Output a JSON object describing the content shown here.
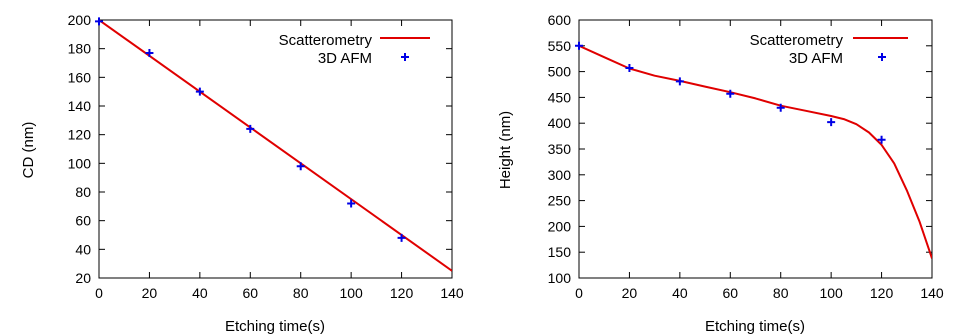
{
  "colors": {
    "fit": "#e00000",
    "afm": "#0000e6",
    "frame": "#000000"
  },
  "chart_data": [
    {
      "type": "scatter",
      "title": "",
      "xlabel": "Etching time(s)",
      "ylabel": "CD (nm)",
      "xlim": [
        0,
        140
      ],
      "ylim": [
        20,
        200
      ],
      "xticks": [
        0,
        20,
        40,
        60,
        80,
        100,
        120,
        140
      ],
      "yticks": [
        20,
        40,
        60,
        80,
        100,
        120,
        140,
        160,
        180,
        200
      ],
      "grid": false,
      "legend_position": "top-right",
      "series": [
        {
          "name": "Scatterometry",
          "style": "line",
          "color": "#e00000",
          "x": [
            0,
            140
          ],
          "y": [
            200,
            25
          ]
        },
        {
          "name": "3D AFM",
          "style": "points",
          "marker": "plus",
          "color": "#0000e6",
          "x": [
            0,
            20,
            40,
            60,
            80,
            100,
            120
          ],
          "y": [
            199,
            177,
            150,
            124,
            98,
            72,
            48
          ]
        }
      ]
    },
    {
      "type": "scatter",
      "title": "",
      "xlabel": "Etching time(s)",
      "ylabel": "Height (nm)",
      "xlim": [
        0,
        140
      ],
      "ylim": [
        100,
        600
      ],
      "xticks": [
        0,
        20,
        40,
        60,
        80,
        100,
        120,
        140
      ],
      "yticks": [
        100,
        150,
        200,
        250,
        300,
        350,
        400,
        450,
        500,
        550,
        600
      ],
      "grid": false,
      "legend_position": "top-right",
      "series": [
        {
          "name": "Scatterometry",
          "style": "line",
          "color": "#e00000",
          "x": [
            0,
            10,
            20,
            30,
            40,
            50,
            60,
            70,
            80,
            90,
            100,
            105,
            110,
            115,
            120,
            125,
            130,
            135,
            140
          ],
          "y": [
            550,
            528,
            506,
            492,
            482,
            471,
            460,
            448,
            434,
            424,
            414,
            408,
            398,
            382,
            358,
            322,
            270,
            210,
            138
          ]
        },
        {
          "name": "3D AFM",
          "style": "points",
          "marker": "plus",
          "color": "#0000e6",
          "x": [
            0,
            20,
            40,
            60,
            80,
            100,
            120
          ],
          "y": [
            550,
            507,
            481,
            457,
            430,
            402,
            368
          ]
        }
      ]
    }
  ]
}
